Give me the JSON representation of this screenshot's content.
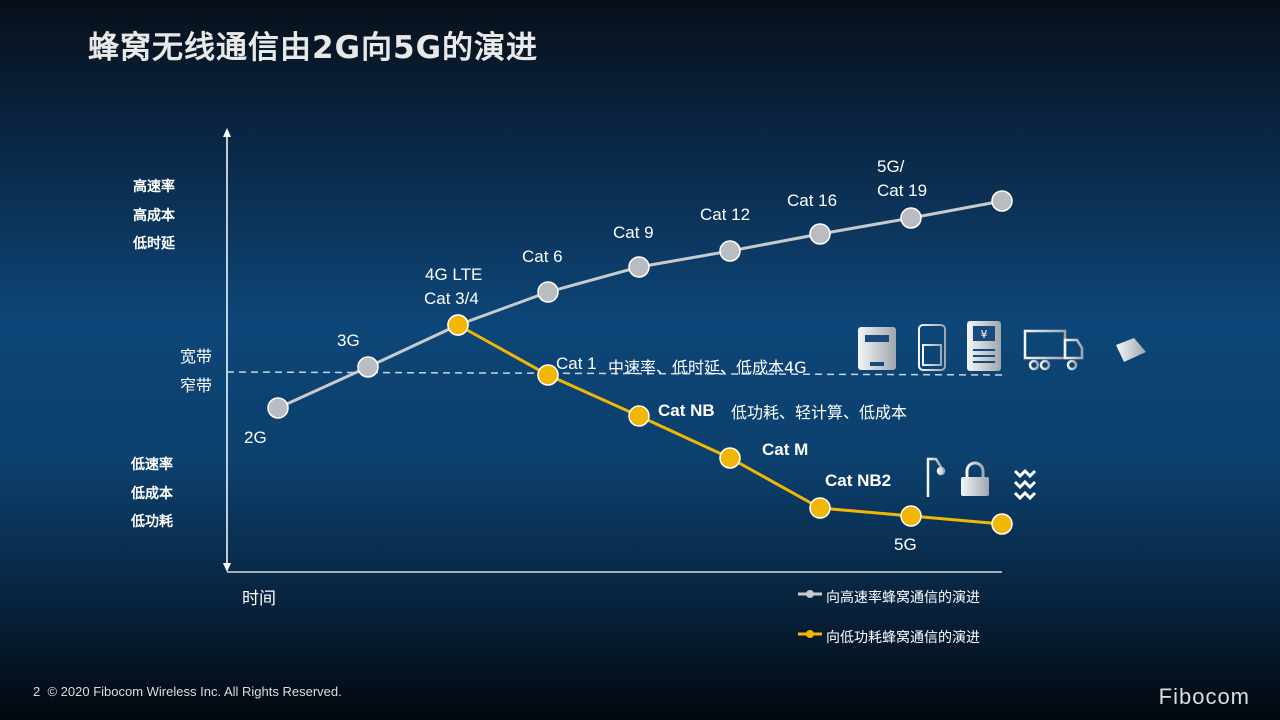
{
  "title": "蜂窝无线通信由2G向5G的演进",
  "y_axis": {
    "top_labels": [
      "高速率",
      "高成本",
      "低时延"
    ],
    "bottom_labels": [
      "低速率",
      "低成本",
      "低功耗"
    ],
    "divider_upper": "宽带",
    "divider_lower": "窄带"
  },
  "x_axis": {
    "label": "时间"
  },
  "colors": {
    "high_speed": "#c8cacc",
    "low_power": "#f2b705",
    "background": "#0d4678"
  },
  "high_speed_path": {
    "legend": "向高速率蜂窝通信的演进",
    "points": [
      "2G",
      "3G",
      "4G LTE Cat 3/4",
      "Cat 6",
      "Cat 9",
      "Cat 12",
      "Cat 16",
      "5G/ Cat 19",
      ""
    ]
  },
  "low_power_path": {
    "legend": "向低功耗蜂窝通信的演进",
    "points": [
      "4G LTE Cat 3/4",
      "Cat 1",
      "Cat NB",
      "Cat M",
      "Cat NB2",
      "5G",
      ""
    ]
  },
  "labels": {
    "g2": "2G",
    "g3": "3G",
    "lte1": "4G LTE",
    "lte2": "Cat 3/4",
    "cat6": "Cat 6",
    "cat9": "Cat 9",
    "cat12": "Cat 12",
    "cat16": "Cat 16",
    "g5a": "5G/",
    "g5b": "Cat 19",
    "cat1": "Cat 1",
    "cat1_note": "中速率、低时延、低成本4G",
    "catnb": "Cat NB",
    "catnb_note": "低功耗、轻计算、低成本",
    "catm": "Cat M",
    "catnb2": "Cat NB2",
    "g5low": "5G"
  },
  "icons": {
    "broadband": [
      "smart-meter-icon",
      "walkie-talkie-icon",
      "pos-terminal-icon",
      "truck-icon",
      "security-camera-icon"
    ],
    "narrowband": [
      "street-lamp-icon",
      "smart-lock-icon",
      "water-meter-icon"
    ]
  },
  "footer": {
    "page": "2",
    "copyright": "© 2020 Fibocom Wireless Inc. All Rights Reserved.",
    "logo": "Fibocom"
  }
}
